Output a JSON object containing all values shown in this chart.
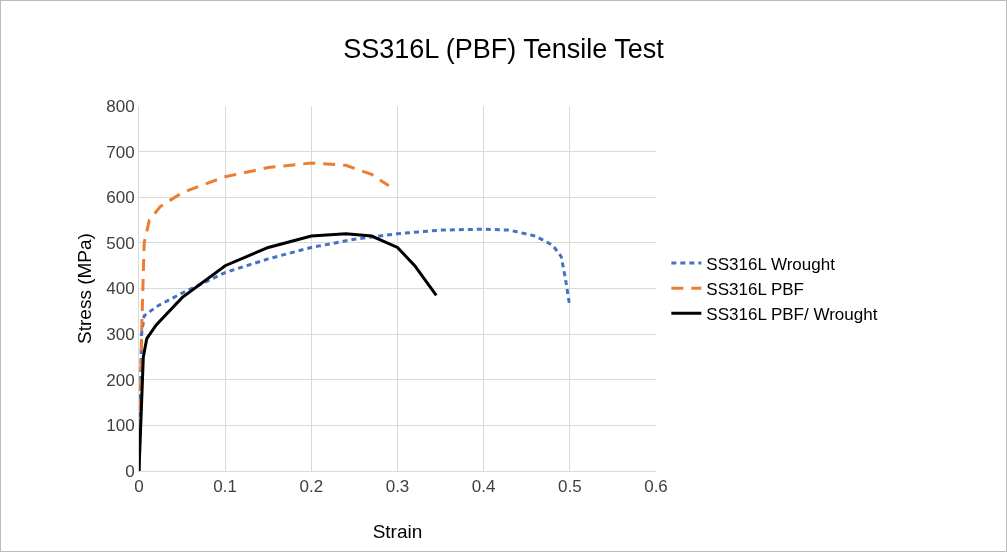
{
  "chart_data": {
    "type": "line",
    "title": "SS316L (PBF) Tensile Test",
    "xlabel": "Strain",
    "ylabel": "Stress (MPa)",
    "xlim": [
      0,
      0.6
    ],
    "xticks": [
      0,
      0.1,
      0.2,
      0.3,
      0.4,
      0.5,
      0.6
    ],
    "ylim": [
      0,
      800
    ],
    "yticks": [
      0,
      100,
      200,
      300,
      400,
      500,
      600,
      700,
      800
    ],
    "grid": true,
    "legend": "right",
    "marker": "none",
    "series": [
      {
        "name": "SS316L Wrought",
        "color": "#4472c4",
        "line_style": "dotted",
        "x": [
          0,
          0.003,
          0.006,
          0.02,
          0.05,
          0.1,
          0.15,
          0.2,
          0.25,
          0.3,
          0.35,
          0.4,
          0.43,
          0.46,
          0.48,
          0.49,
          0.495,
          0.5
        ],
        "values": [
          0,
          300,
          340,
          360,
          390,
          435,
          465,
          490,
          508,
          520,
          528,
          530,
          528,
          515,
          495,
          470,
          420,
          360
        ]
      },
      {
        "name": "SS316L PBF",
        "color": "#ed7d31",
        "line_style": "dashed",
        "x": [
          0,
          0.003,
          0.006,
          0.012,
          0.025,
          0.05,
          0.1,
          0.15,
          0.2,
          0.24,
          0.27,
          0.29
        ],
        "values": [
          0,
          300,
          500,
          550,
          580,
          610,
          645,
          665,
          675,
          670,
          650,
          625
        ]
      },
      {
        "name": "SS316L PBF/ Wrought",
        "color": "#000000",
        "line_style": "solid",
        "x": [
          0,
          0.005,
          0.009,
          0.02,
          0.05,
          0.1,
          0.15,
          0.2,
          0.24,
          0.27,
          0.3,
          0.32,
          0.345
        ],
        "values": [
          0,
          250,
          290,
          320,
          380,
          450,
          490,
          515,
          520,
          515,
          490,
          450,
          385
        ]
      }
    ]
  }
}
